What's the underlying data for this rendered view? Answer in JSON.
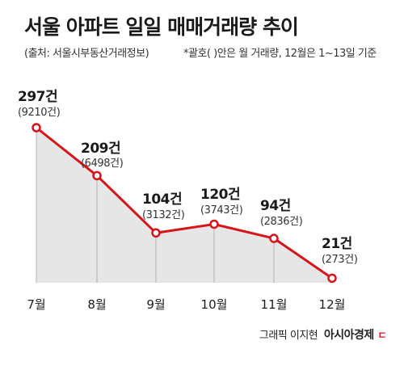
{
  "header": {
    "title": "서울 아파트 일일 매매거래량 추이",
    "source": "(출처: 서울시부동산거래정보)",
    "note": "*괄호( )안은 월 거래량, 12월은 1~13일 기준"
  },
  "footer": {
    "credit": "그래픽 이지현",
    "brand": "아시아경제",
    "brand_mark": "ㄷ"
  },
  "colors": {
    "line": "#d7141a",
    "area": "#e6e6e6",
    "drop_line": "#b3b3b3",
    "text": "#1a1a1a"
  },
  "chart_data": {
    "type": "line",
    "categories": [
      "7월",
      "8월",
      "9월",
      "10월",
      "11월",
      "12월"
    ],
    "values": [
      297,
      209,
      104,
      120,
      94,
      21
    ],
    "value_labels": [
      "297건",
      "209건",
      "104건",
      "120건",
      "94건",
      "21건"
    ],
    "monthly_labels": [
      "(9210건)",
      "(6498건)",
      "(3132건)",
      "(3743건)",
      "(2836건)",
      "(273건)"
    ],
    "monthly_totals": [
      9210,
      6498,
      3132,
      3743,
      2836,
      273
    ],
    "title": "서울 아파트 일일 매매거래량 추이",
    "xlabel": "",
    "ylabel": "",
    "grid": false,
    "legend": "none",
    "area_fill": true
  }
}
